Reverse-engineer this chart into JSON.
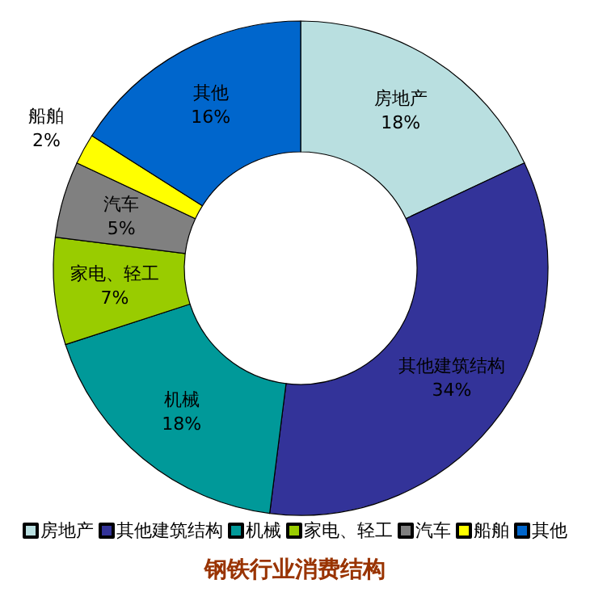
{
  "chart_data": {
    "type": "donut",
    "title": "钢铁行业消费结构",
    "categories": [
      "房地产",
      "其他建筑结构",
      "机械",
      "家电、轻工",
      "汽车",
      "船舶",
      "其他"
    ],
    "values": [
      18,
      34,
      18,
      7,
      5,
      2,
      16
    ],
    "value_labels": [
      "18%",
      "34%",
      "18%",
      "7%",
      "5%",
      "2%",
      "16%"
    ],
    "colors": [
      "#b9dfe0",
      "#333399",
      "#009999",
      "#99cc00",
      "#808080",
      "#ffff00",
      "#0066cc"
    ],
    "legend": "bottom"
  }
}
